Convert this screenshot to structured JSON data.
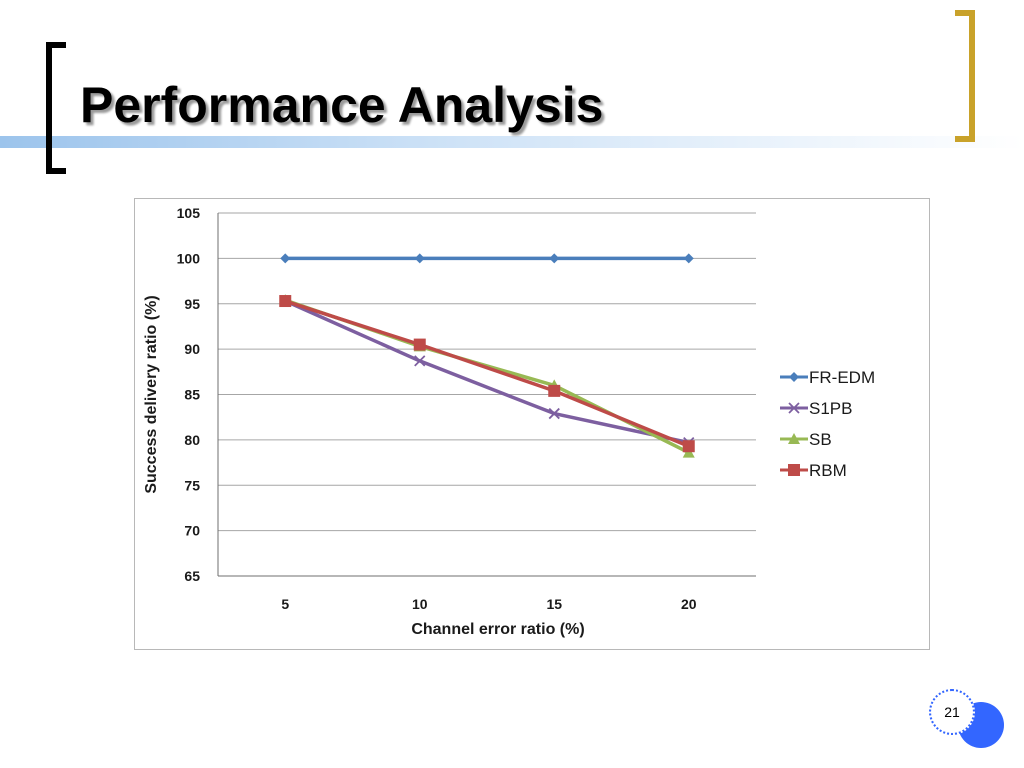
{
  "slide": {
    "title": "Performance Analysis",
    "page_number": "21"
  },
  "colors": {
    "title_bar_blue": "#9cc4ec",
    "left_bracket": "#000000",
    "right_bracket": "#c9a22a",
    "page_circle": "#3366ff"
  },
  "chart_data": {
    "type": "line",
    "title": "",
    "xlabel": "Channel error ratio (%)",
    "ylabel": "Success delivery ratio (%)",
    "categories": [
      "5",
      "10",
      "15",
      "20"
    ],
    "ylim": [
      65,
      105
    ],
    "yticks": [
      "65",
      "70",
      "75",
      "80",
      "85",
      "90",
      "95",
      "100",
      "105"
    ],
    "grid": true,
    "legend_position": "right",
    "series": [
      {
        "name": "FR-EDM",
        "values": [
          100,
          100,
          100,
          100
        ],
        "color": "#4a7ebb",
        "marker": "diamond"
      },
      {
        "name": "S1PB",
        "values": [
          95.3,
          88.7,
          82.9,
          79.7
        ],
        "color": "#7d5fa0",
        "marker": "x"
      },
      {
        "name": "SB",
        "values": [
          95.4,
          90.3,
          86.0,
          78.6
        ],
        "color": "#98b954",
        "marker": "triangle"
      },
      {
        "name": "RBM",
        "values": [
          95.3,
          90.5,
          85.4,
          79.3
        ],
        "color": "#be4b48",
        "marker": "square"
      }
    ]
  }
}
